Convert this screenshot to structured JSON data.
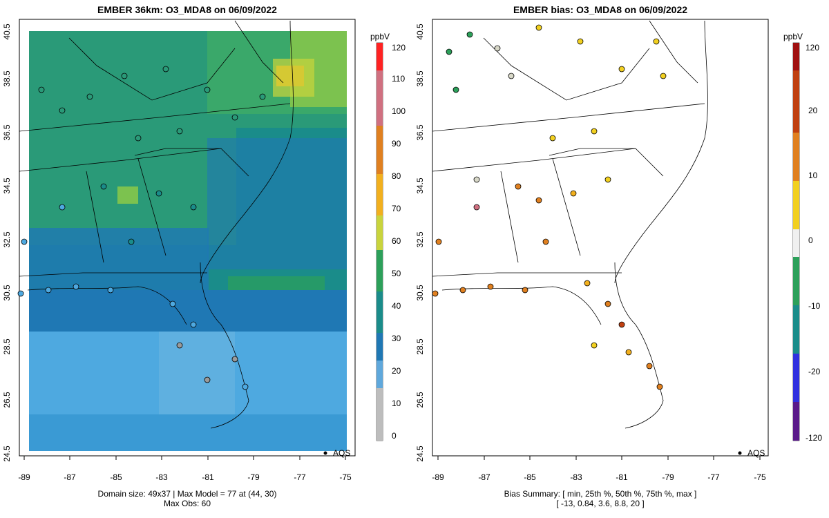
{
  "left": {
    "title": "EMBER 36km: O3_MDA8 on 06/09/2022",
    "colorbar_unit": "ppbV",
    "colorbar_ticks": [
      "0",
      "10",
      "20",
      "30",
      "40",
      "50",
      "60",
      "70",
      "80",
      "90",
      "100",
      "110",
      "120"
    ],
    "legend_label": "AQS",
    "footer_line1": "Domain size: 49x37 | Max Model = 77 at (44, 30)",
    "footer_line2": "Max Obs: 60"
  },
  "right": {
    "title": "EMBER bias: O3_MDA8 on 06/09/2022",
    "colorbar_unit": "ppbV",
    "colorbar_ticks": [
      "-120",
      "-20",
      "-10",
      "0",
      "10",
      "20",
      "120"
    ],
    "legend_label": "AQS",
    "footer_line1": "Bias Summary: [ min, 25th %, 50th %, 75th %, max ]",
    "footer_line2": "[ -13,  0.84,  3.6,  8.8,  20 ]"
  },
  "axes": {
    "x_ticks": [
      "-89",
      "-87",
      "-85",
      "-83",
      "-81",
      "-79",
      "-77",
      "-75"
    ],
    "y_ticks": [
      "24.5",
      "26.5",
      "28.5",
      "30.5",
      "32.5",
      "34.5",
      "36.5",
      "38.5",
      "40.5"
    ]
  },
  "colors": {
    "model_palette": [
      "#e0e0e0",
      "#c0c0c0",
      "#9a9a9a",
      "#5fa8dc",
      "#4ea9e0",
      "#1f78b4",
      "#1a8c8a",
      "#2ca05a",
      "#7cc24f",
      "#c9d43c",
      "#f2b01e",
      "#e08020",
      "#ff2222"
    ],
    "bias_palette": [
      "#5a1a8a",
      "#3030e0",
      "#1a8c8a",
      "#2ca05a",
      "#f0f0f0",
      "#f2d020",
      "#e08020",
      "#c04010",
      "#a01010"
    ]
  }
}
